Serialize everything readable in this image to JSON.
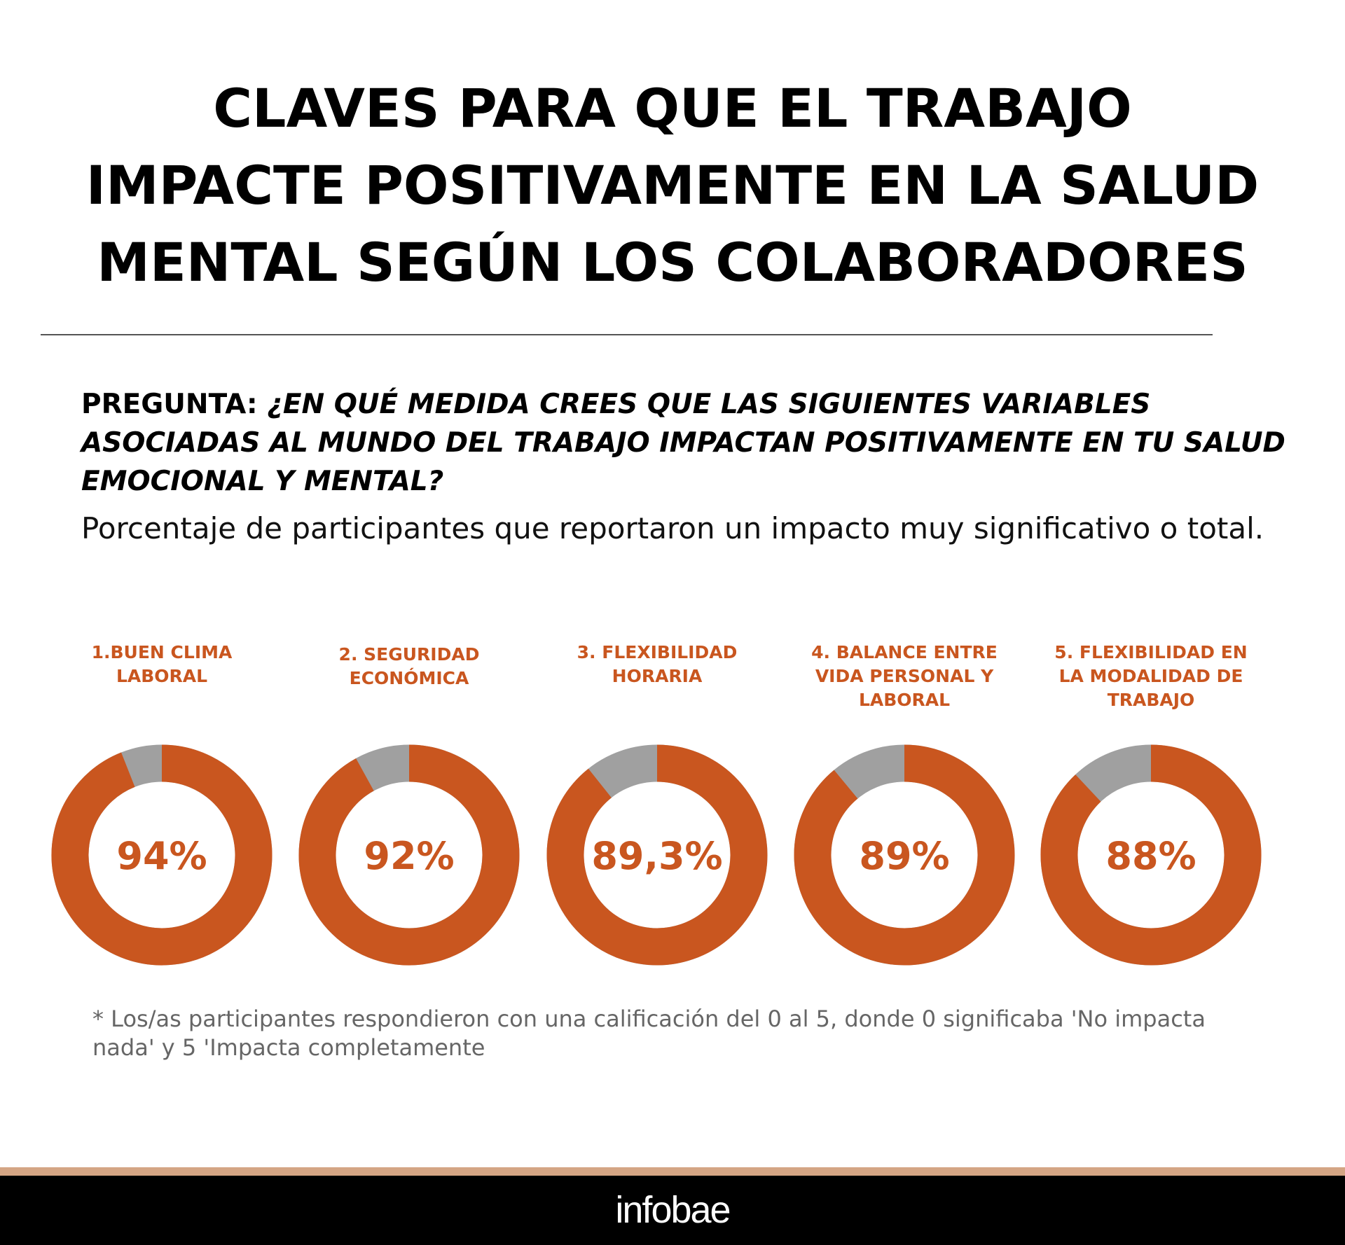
{
  "title": [
    "CLAVES PARA QUE EL TRABAJO",
    "IMPACTE POSITIVAMENTE EN LA SALUD",
    "MENTAL SEGÚN LOS COLABORADORES"
  ],
  "question": {
    "label": "PREGUNTA:",
    "text": "¿EN QUÉ MEDIDA CREES QUE LAS SIGUIENTES VARIABLES ASOCIADAS AL MUNDO DEL TRABAJO IMPACTAN POSITIVAMENTE EN TU SALUD EMOCIONAL Y MENTAL?"
  },
  "subtitle": "Porcentaje de participantes que reportaron un impacto muy significativo o total.",
  "chart_data": {
    "type": "pie",
    "variant": "donut",
    "colors": {
      "value": "#C9561F",
      "remainder": "#A0A0A0"
    },
    "categories": [
      "1.BUEN CLIMA LABORAL",
      "2. SEGURIDAD ECONÓMICA",
      "3. FLEXIBILIDAD HORARIA",
      "4. BALANCE ENTRE VIDA PERSONAL Y LABORAL",
      "5. FLEXIBILIDAD EN LA MODALIDAD DE TRABAJO"
    ],
    "values": [
      94,
      92,
      89.3,
      89,
      88
    ],
    "value_labels": [
      "94%",
      "92%",
      "89,3%",
      "89%",
      "88%"
    ]
  },
  "footnote": "* Los/as participantes respondieron con una calificación del 0 al 5, donde 0 significaba 'No impacta nada' y 5 'Impacta completamente",
  "footer": {
    "logo": "infobae"
  }
}
